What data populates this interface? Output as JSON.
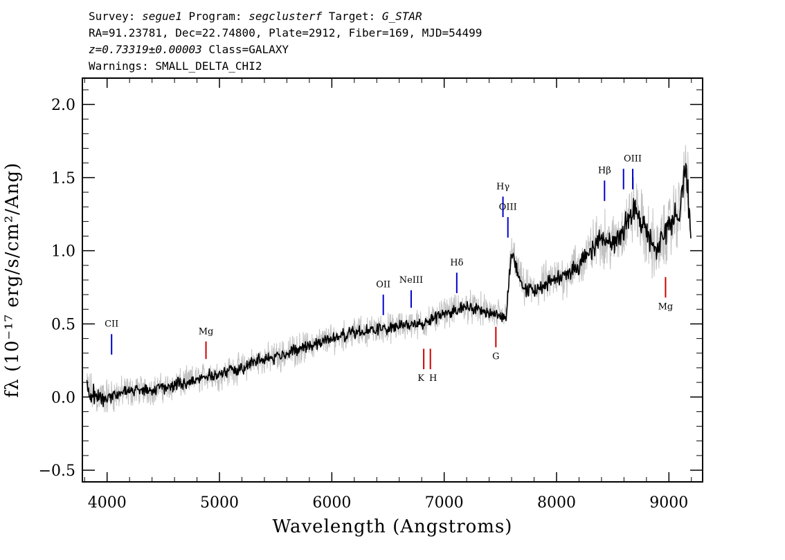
{
  "header": {
    "line1": {
      "survey_label": "Survey: ",
      "survey": "segue1",
      "program_label": " Program: ",
      "program": "segclusterf",
      "target_label": " Target: ",
      "target": "G_STAR"
    },
    "line2": "RA=91.23781, Dec=22.74800, Plate=2912, Fiber=169, MJD=54499",
    "line3": {
      "redshift": "z=0.73319±0.00003",
      "class": " Class=GALAXY"
    },
    "line4": "Warnings: SMALL_DELTA_CHI2"
  },
  "chart_data": {
    "type": "line",
    "xlabel": "Wavelength (Angstroms)",
    "ylabel": "fλ (10⁻¹⁷ erg/s/cm²/Ang)",
    "xlim": [
      3780,
      9300
    ],
    "ylim": [
      -0.58,
      2.18
    ],
    "xticks": [
      4000,
      5000,
      6000,
      7000,
      8000,
      9000
    ],
    "xtick_labels": [
      "4000",
      "5000",
      "6000",
      "7000",
      "8000",
      "9000"
    ],
    "yticks": [
      -0.5,
      0.0,
      0.5,
      1.0,
      1.5,
      2.0
    ],
    "ytick_labels": [
      "−0.5",
      "0.0",
      "0.5",
      "1.0",
      "1.5",
      "2.0"
    ],
    "series": [
      {
        "style": "noisy spectrum, gray",
        "color": "#c0c0c0",
        "x": [
          3820,
          3900,
          4000,
          4100,
          4200,
          4300,
          4400,
          4500,
          4600,
          4700,
          4800,
          4900,
          5000,
          5100,
          5200,
          5300,
          5400,
          5500,
          5600,
          5700,
          5800,
          5900,
          6000,
          6100,
          6200,
          6300,
          6400,
          6500,
          6600,
          6700,
          6800,
          6900,
          7000,
          7100,
          7200,
          7300,
          7400,
          7500,
          7550,
          7600,
          7700,
          7800,
          7900,
          8000,
          8100,
          8200,
          8300,
          8400,
          8500,
          8600,
          8700,
          8800,
          8900,
          9000,
          9100,
          9150,
          9200
        ],
        "y": [
          0.05,
          0.0,
          0.0,
          0.02,
          0.04,
          0.05,
          0.05,
          0.06,
          0.08,
          0.1,
          0.12,
          0.15,
          0.15,
          0.18,
          0.2,
          0.24,
          0.26,
          0.27,
          0.3,
          0.33,
          0.35,
          0.38,
          0.4,
          0.42,
          0.44,
          0.45,
          0.46,
          0.47,
          0.48,
          0.5,
          0.5,
          0.53,
          0.58,
          0.6,
          0.62,
          0.6,
          0.58,
          0.55,
          0.56,
          1.0,
          0.75,
          0.72,
          0.78,
          0.8,
          0.85,
          0.9,
          1.0,
          1.1,
          1.05,
          1.15,
          1.3,
          1.1,
          1.0,
          1.15,
          1.3,
          1.6,
          1.05
        ],
        "noise": [
          0.18,
          0.16,
          0.15,
          0.14,
          0.13,
          0.12,
          0.12,
          0.12,
          0.12,
          0.12,
          0.12,
          0.12,
          0.12,
          0.12,
          0.12,
          0.12,
          0.12,
          0.13,
          0.13,
          0.13,
          0.12,
          0.12,
          0.12,
          0.12,
          0.12,
          0.12,
          0.12,
          0.12,
          0.12,
          0.12,
          0.12,
          0.12,
          0.12,
          0.12,
          0.13,
          0.13,
          0.14,
          0.14,
          0.14,
          0.15,
          0.15,
          0.16,
          0.17,
          0.18,
          0.19,
          0.2,
          0.22,
          0.23,
          0.24,
          0.25,
          0.27,
          0.28,
          0.28,
          0.28,
          0.3,
          0.32,
          0.3
        ]
      },
      {
        "style": "smoothed spectrum, black",
        "color": "#000000",
        "x": [
          3820,
          3900,
          4000,
          4100,
          4200,
          4300,
          4400,
          4500,
          4600,
          4700,
          4800,
          4900,
          5000,
          5100,
          5200,
          5300,
          5400,
          5500,
          5600,
          5700,
          5800,
          5900,
          6000,
          6100,
          6200,
          6300,
          6400,
          6500,
          6600,
          6700,
          6800,
          6900,
          7000,
          7100,
          7200,
          7300,
          7400,
          7500,
          7550,
          7600,
          7700,
          7800,
          7900,
          8000,
          8100,
          8200,
          8300,
          8400,
          8500,
          8600,
          8700,
          8800,
          8900,
          9000,
          9100,
          9150,
          9200
        ],
        "y": [
          0.05,
          0.0,
          0.0,
          0.02,
          0.04,
          0.05,
          0.05,
          0.06,
          0.08,
          0.1,
          0.12,
          0.15,
          0.15,
          0.18,
          0.2,
          0.24,
          0.26,
          0.27,
          0.3,
          0.33,
          0.35,
          0.38,
          0.4,
          0.42,
          0.44,
          0.45,
          0.46,
          0.47,
          0.48,
          0.5,
          0.5,
          0.53,
          0.58,
          0.6,
          0.62,
          0.6,
          0.58,
          0.55,
          0.56,
          1.0,
          0.75,
          0.72,
          0.78,
          0.8,
          0.85,
          0.9,
          1.0,
          1.1,
          1.05,
          1.15,
          1.3,
          1.1,
          1.0,
          1.15,
          1.3,
          1.6,
          1.05
        ],
        "noise": [
          0.09,
          0.08,
          0.07,
          0.06,
          0.05,
          0.05,
          0.05,
          0.05,
          0.05,
          0.05,
          0.05,
          0.05,
          0.05,
          0.05,
          0.05,
          0.05,
          0.05,
          0.05,
          0.05,
          0.05,
          0.05,
          0.05,
          0.05,
          0.05,
          0.05,
          0.05,
          0.05,
          0.05,
          0.05,
          0.05,
          0.05,
          0.05,
          0.05,
          0.05,
          0.05,
          0.05,
          0.05,
          0.05,
          0.05,
          0.06,
          0.06,
          0.06,
          0.07,
          0.07,
          0.07,
          0.08,
          0.08,
          0.09,
          0.09,
          0.1,
          0.1,
          0.11,
          0.11,
          0.11,
          0.12,
          0.12,
          0.12
        ]
      }
    ],
    "emission_lines": [
      {
        "label": "CII",
        "x": 4040,
        "y_top": 0.43,
        "y_bottom": 0.29,
        "label_y": 0.48,
        "color": "#0000cc"
      },
      {
        "label": "OII",
        "x": 6458,
        "y_top": 0.7,
        "y_bottom": 0.56,
        "label_y": 0.75,
        "color": "#0000cc"
      },
      {
        "label": "NeIII",
        "x": 6706,
        "y_top": 0.73,
        "y_bottom": 0.61,
        "label_y": 0.78,
        "color": "#0000cc"
      },
      {
        "label": "Hδ",
        "x": 7112,
        "y_top": 0.85,
        "y_bottom": 0.71,
        "label_y": 0.9,
        "color": "#0000cc"
      },
      {
        "label": "Hγ",
        "x": 7523,
        "y_top": 1.37,
        "y_bottom": 1.23,
        "label_y": 1.42,
        "color": "#0000cc"
      },
      {
        "label": "OIII",
        "x": 7567,
        "y_top": 1.23,
        "y_bottom": 1.09,
        "label_y": 1.28,
        "color": "#0000cc"
      },
      {
        "label": "Hβ",
        "x": 8427,
        "y_top": 1.48,
        "y_bottom": 1.34,
        "label_y": 1.53,
        "color": "#0000cc"
      },
      {
        "label": "OIII",
        "x": 8596,
        "y_top": 1.56,
        "y_bottom": 1.42,
        "label_y": null,
        "color": "#0000cc"
      },
      {
        "label": "OIII",
        "x": 8678,
        "y_top": 1.56,
        "y_bottom": 1.42,
        "label_y": 1.61,
        "color": "#0000cc"
      }
    ],
    "absorption_lines": [
      {
        "label": "Mg",
        "x": 4880,
        "y_top": 0.38,
        "y_bottom": 0.26,
        "label_y": 0.43,
        "color": "#cc0000",
        "label_above": true
      },
      {
        "label": "K",
        "x": 6818,
        "y_top": 0.33,
        "y_bottom": 0.19,
        "label_y": 0.11,
        "color": "#cc0000",
        "label_above": false
      },
      {
        "label": "H",
        "x": 6877,
        "y_top": 0.33,
        "y_bottom": 0.19,
        "label_y": 0.11,
        "color": "#cc0000",
        "label_above": false
      },
      {
        "label": "G",
        "x": 7460,
        "y_top": 0.48,
        "y_bottom": 0.34,
        "label_y": 0.26,
        "color": "#cc0000",
        "label_above": false
      },
      {
        "label": "Mg",
        "x": 8970,
        "y_top": 0.82,
        "y_bottom": 0.68,
        "label_y": 0.6,
        "color": "#cc0000",
        "label_above": false
      }
    ],
    "grid": false,
    "legend": "none"
  }
}
